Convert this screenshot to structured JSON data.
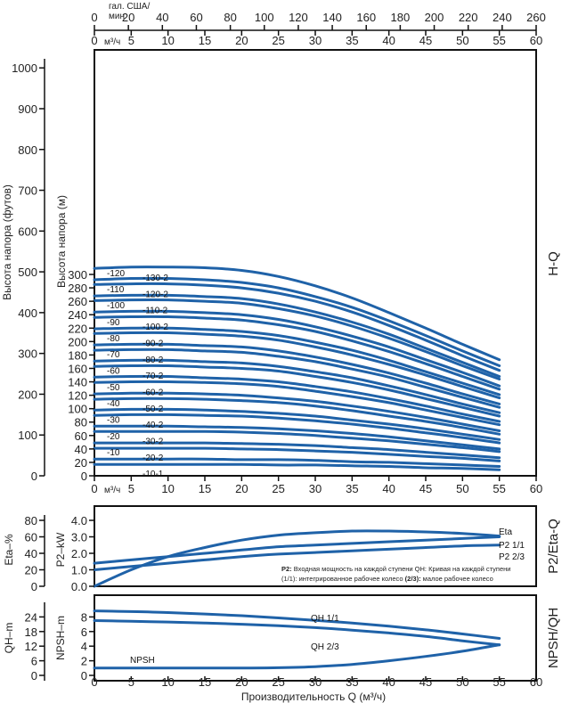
{
  "top_axes": {
    "gpm_label_1": "гал. США/",
    "gpm_label_2": "мин",
    "gpm_ticks": [
      "0",
      "20",
      "40",
      "60",
      "80",
      "100",
      "120",
      "140",
      "160",
      "180",
      "200",
      "220",
      "240",
      "260"
    ],
    "m3h_unit": "м³/ч",
    "m3h_ticks": [
      "0",
      "5",
      "10",
      "15",
      "20",
      "25",
      "30",
      "35",
      "40",
      "45",
      "50",
      "55",
      "60"
    ]
  },
  "hq": {
    "feet_title": "Высота напора (футов)",
    "m_title": "Высота напора (м)",
    "side_title": "H-Q",
    "feet_ticks": [
      "0",
      "100",
      "200",
      "300",
      "400",
      "500",
      "600",
      "700",
      "800",
      "900",
      "1000"
    ],
    "m_ticks": [
      "0",
      "20",
      "40",
      "60",
      "80",
      "100",
      "120",
      "140",
      "160",
      "180",
      "200",
      "220",
      "240",
      "260",
      "280",
      "300"
    ],
    "bottom_unit": "м³/ч",
    "bottom_ticks": [
      "0",
      "5",
      "10",
      "15",
      "20",
      "25",
      "30",
      "35",
      "40",
      "45",
      "50",
      "55",
      "60"
    ]
  },
  "p2": {
    "eta_title": "Eta–%",
    "p2_title": "P2–kW",
    "side_title": "P2/Eta-Q",
    "eta_ticks": [
      "0",
      "20",
      "40",
      "60",
      "80"
    ],
    "p2_ticks": [
      "0.0",
      "1.0",
      "2.0",
      "3.0",
      "4.0"
    ],
    "labels": {
      "eta": "Eta",
      "p11": "P2 1/1",
      "p23": "P2 2/3"
    },
    "note_line1_bold": "P2:",
    "note_line1": " Входная мощность на каждой ступени QH: Кривая на каждой ступени",
    "note_line2a": "(1/1): интегрированное рабочее колесо ",
    "note_line2_bold": "(2/3):",
    "note_line2b": " малое рабочее колесо"
  },
  "npsh": {
    "qh_title": "QH–m",
    "npsh_title": "NPSH–m",
    "side_title": "NPSH/QH",
    "qh_ticks": [
      "0",
      "6",
      "12",
      "18",
      "24"
    ],
    "npsh_ticks": [
      "0",
      "2",
      "4",
      "6",
      "8"
    ],
    "labels": {
      "qh11": "QH 1/1",
      "qh23": "QH 2/3",
      "npsh": "NPSH"
    },
    "x_ticks": [
      "0",
      "5",
      "10",
      "15",
      "20",
      "25",
      "30",
      "35",
      "40",
      "45",
      "50",
      "55",
      "60"
    ],
    "x_title": "Производительность Q (м³/ч)"
  },
  "chart_data": [
    {
      "type": "line",
      "title": "H-Q",
      "xlabel": "м³/ч",
      "ylabel": "Высота напора (м)",
      "xlim": [
        0,
        60
      ],
      "ylim": [
        0,
        300
      ],
      "x": [
        0,
        5,
        10,
        15,
        20,
        25,
        30,
        35,
        40,
        45,
        50,
        55
      ],
      "series": [
        {
          "name": "-130-2",
          "values": [
            309,
            311,
            311,
            310,
            306,
            297,
            283,
            265,
            243,
            220,
            196,
            173
          ]
        },
        {
          "name": "-120",
          "values": [
            292,
            294,
            294,
            292,
            288,
            280,
            267,
            251,
            231,
            209,
            186,
            164
          ]
        },
        {
          "name": "-120-2",
          "values": [
            285,
            286,
            286,
            284,
            280,
            272,
            260,
            244,
            224,
            202,
            179,
            157
          ]
        },
        {
          "name": "-110",
          "values": [
            268,
            269,
            269,
            267,
            264,
            256,
            244,
            229,
            211,
            190,
            169,
            148
          ]
        },
        {
          "name": "-110-2",
          "values": [
            261,
            262,
            262,
            260,
            257,
            249,
            238,
            223,
            205,
            185,
            164,
            144
          ]
        },
        {
          "name": "-100",
          "values": [
            244,
            245,
            245,
            243,
            240,
            233,
            222,
            208,
            192,
            173,
            154,
            134
          ]
        },
        {
          "name": "-100-2",
          "values": [
            236,
            237,
            237,
            235,
            232,
            225,
            215,
            201,
            185,
            167,
            148,
            129
          ]
        },
        {
          "name": "-90",
          "values": [
            219,
            220,
            220,
            218,
            215,
            209,
            199,
            187,
            172,
            155,
            138,
            121
          ]
        },
        {
          "name": "-90-2",
          "values": [
            212,
            213,
            213,
            211,
            208,
            202,
            192,
            180,
            166,
            150,
            133,
            116
          ]
        },
        {
          "name": "-80",
          "values": [
            195,
            196,
            196,
            194,
            192,
            186,
            177,
            166,
            153,
            138,
            122,
            107
          ]
        },
        {
          "name": "-80-2",
          "values": [
            187,
            188,
            188,
            186,
            184,
            178,
            170,
            159,
            147,
            132,
            117,
            102
          ]
        },
        {
          "name": "-70",
          "values": [
            171,
            172,
            172,
            170,
            168,
            163,
            155,
            146,
            134,
            121,
            107,
            94
          ]
        },
        {
          "name": "-70-2",
          "values": [
            163,
            164,
            164,
            162,
            160,
            156,
            148,
            139,
            128,
            115,
            102,
            89
          ]
        },
        {
          "name": "-60",
          "values": [
            147,
            148,
            148,
            146,
            144,
            140,
            133,
            125,
            115,
            104,
            92,
            81
          ]
        },
        {
          "name": "-60-2",
          "values": [
            139,
            140,
            140,
            139,
            137,
            133,
            126,
            118,
            109,
            98,
            87,
            76
          ]
        },
        {
          "name": "-50",
          "values": [
            122,
            123,
            123,
            122,
            120,
            116,
            111,
            104,
            96,
            87,
            77,
            67
          ]
        },
        {
          "name": "-50-2",
          "values": [
            114,
            115,
            115,
            114,
            112,
            109,
            104,
            97,
            89,
            81,
            72,
            62
          ]
        },
        {
          "name": "-40",
          "values": [
            98,
            99,
            99,
            98,
            96,
            93,
            89,
            83,
            77,
            70,
            62,
            54
          ]
        },
        {
          "name": "-40-2",
          "values": [
            90,
            91,
            91,
            90,
            89,
            86,
            82,
            77,
            71,
            64,
            57,
            49
          ]
        },
        {
          "name": "-30",
          "values": [
            74,
            74,
            74,
            73,
            72,
            70,
            67,
            63,
            58,
            52,
            46,
            40
          ]
        },
        {
          "name": "-30-2",
          "values": [
            66,
            66,
            66,
            66,
            65,
            63,
            60,
            56,
            52,
            47,
            42,
            36
          ]
        },
        {
          "name": "-20",
          "values": [
            49,
            49,
            49,
            49,
            48,
            47,
            45,
            42,
            39,
            35,
            31,
            27
          ]
        },
        {
          "name": "-20-2",
          "values": [
            41,
            41,
            41,
            41,
            40,
            39,
            37,
            35,
            32,
            29,
            26,
            22
          ]
        },
        {
          "name": "-10",
          "values": [
            25,
            25,
            25,
            25,
            24,
            24,
            23,
            21,
            20,
            18,
            16,
            14
          ]
        },
        {
          "name": "-10-1",
          "values": [
            17,
            17,
            17,
            17,
            17,
            16,
            16,
            15,
            14,
            12,
            11,
            9
          ]
        }
      ]
    },
    {
      "type": "line",
      "title": "P2/Eta-Q",
      "xlim": [
        0,
        60
      ],
      "ylim_p2_kw": [
        0,
        4.0
      ],
      "ylim_eta_pct": [
        0,
        80
      ],
      "x": [
        0,
        5,
        10,
        15,
        20,
        25,
        30,
        35,
        40,
        45,
        50,
        55
      ],
      "series": [
        {
          "name": "Eta",
          "axis": "Eta–%",
          "values": [
            0,
            20,
            36,
            47,
            56,
            62,
            65,
            67,
            67,
            66,
            64,
            61
          ]
        },
        {
          "name": "P2 1/1",
          "axis": "P2–kW",
          "values": [
            1.4,
            1.6,
            1.8,
            2.0,
            2.2,
            2.4,
            2.5,
            2.6,
            2.7,
            2.8,
            2.9,
            3.0
          ]
        },
        {
          "name": "P2 2/3",
          "axis": "P2–kW",
          "values": [
            1.0,
            1.2,
            1.4,
            1.6,
            1.8,
            1.95,
            2.05,
            2.15,
            2.25,
            2.35,
            2.45,
            2.5
          ]
        }
      ]
    },
    {
      "type": "line",
      "title": "NPSH/QH",
      "xlabel": "Производительность Q (м³/ч)",
      "xlim": [
        0,
        60
      ],
      "ylim_qh_m": [
        0,
        24
      ],
      "ylim_npsh_m": [
        0,
        8
      ],
      "x": [
        0,
        5,
        10,
        15,
        20,
        25,
        30,
        35,
        40,
        45,
        50,
        55
      ],
      "series": [
        {
          "name": "QH 1/1",
          "axis": "QH–m",
          "values": [
            26.5,
            26.2,
            25.8,
            25.2,
            24.5,
            23.6,
            22.6,
            21.5,
            20.2,
            18.7,
            17.0,
            15.2
          ]
        },
        {
          "name": "QH 2/3",
          "axis": "QH–m",
          "values": [
            22.5,
            22.2,
            21.9,
            21.5,
            21.0,
            20.4,
            19.6,
            18.6,
            17.4,
            16.0,
            14.2,
            12.5
          ]
        },
        {
          "name": "NPSH",
          "axis": "NPSH–m",
          "values": [
            1.0,
            1.0,
            1.0,
            1.0,
            1.0,
            1.05,
            1.2,
            1.5,
            2.0,
            2.6,
            3.3,
            4.2
          ]
        }
      ]
    }
  ]
}
